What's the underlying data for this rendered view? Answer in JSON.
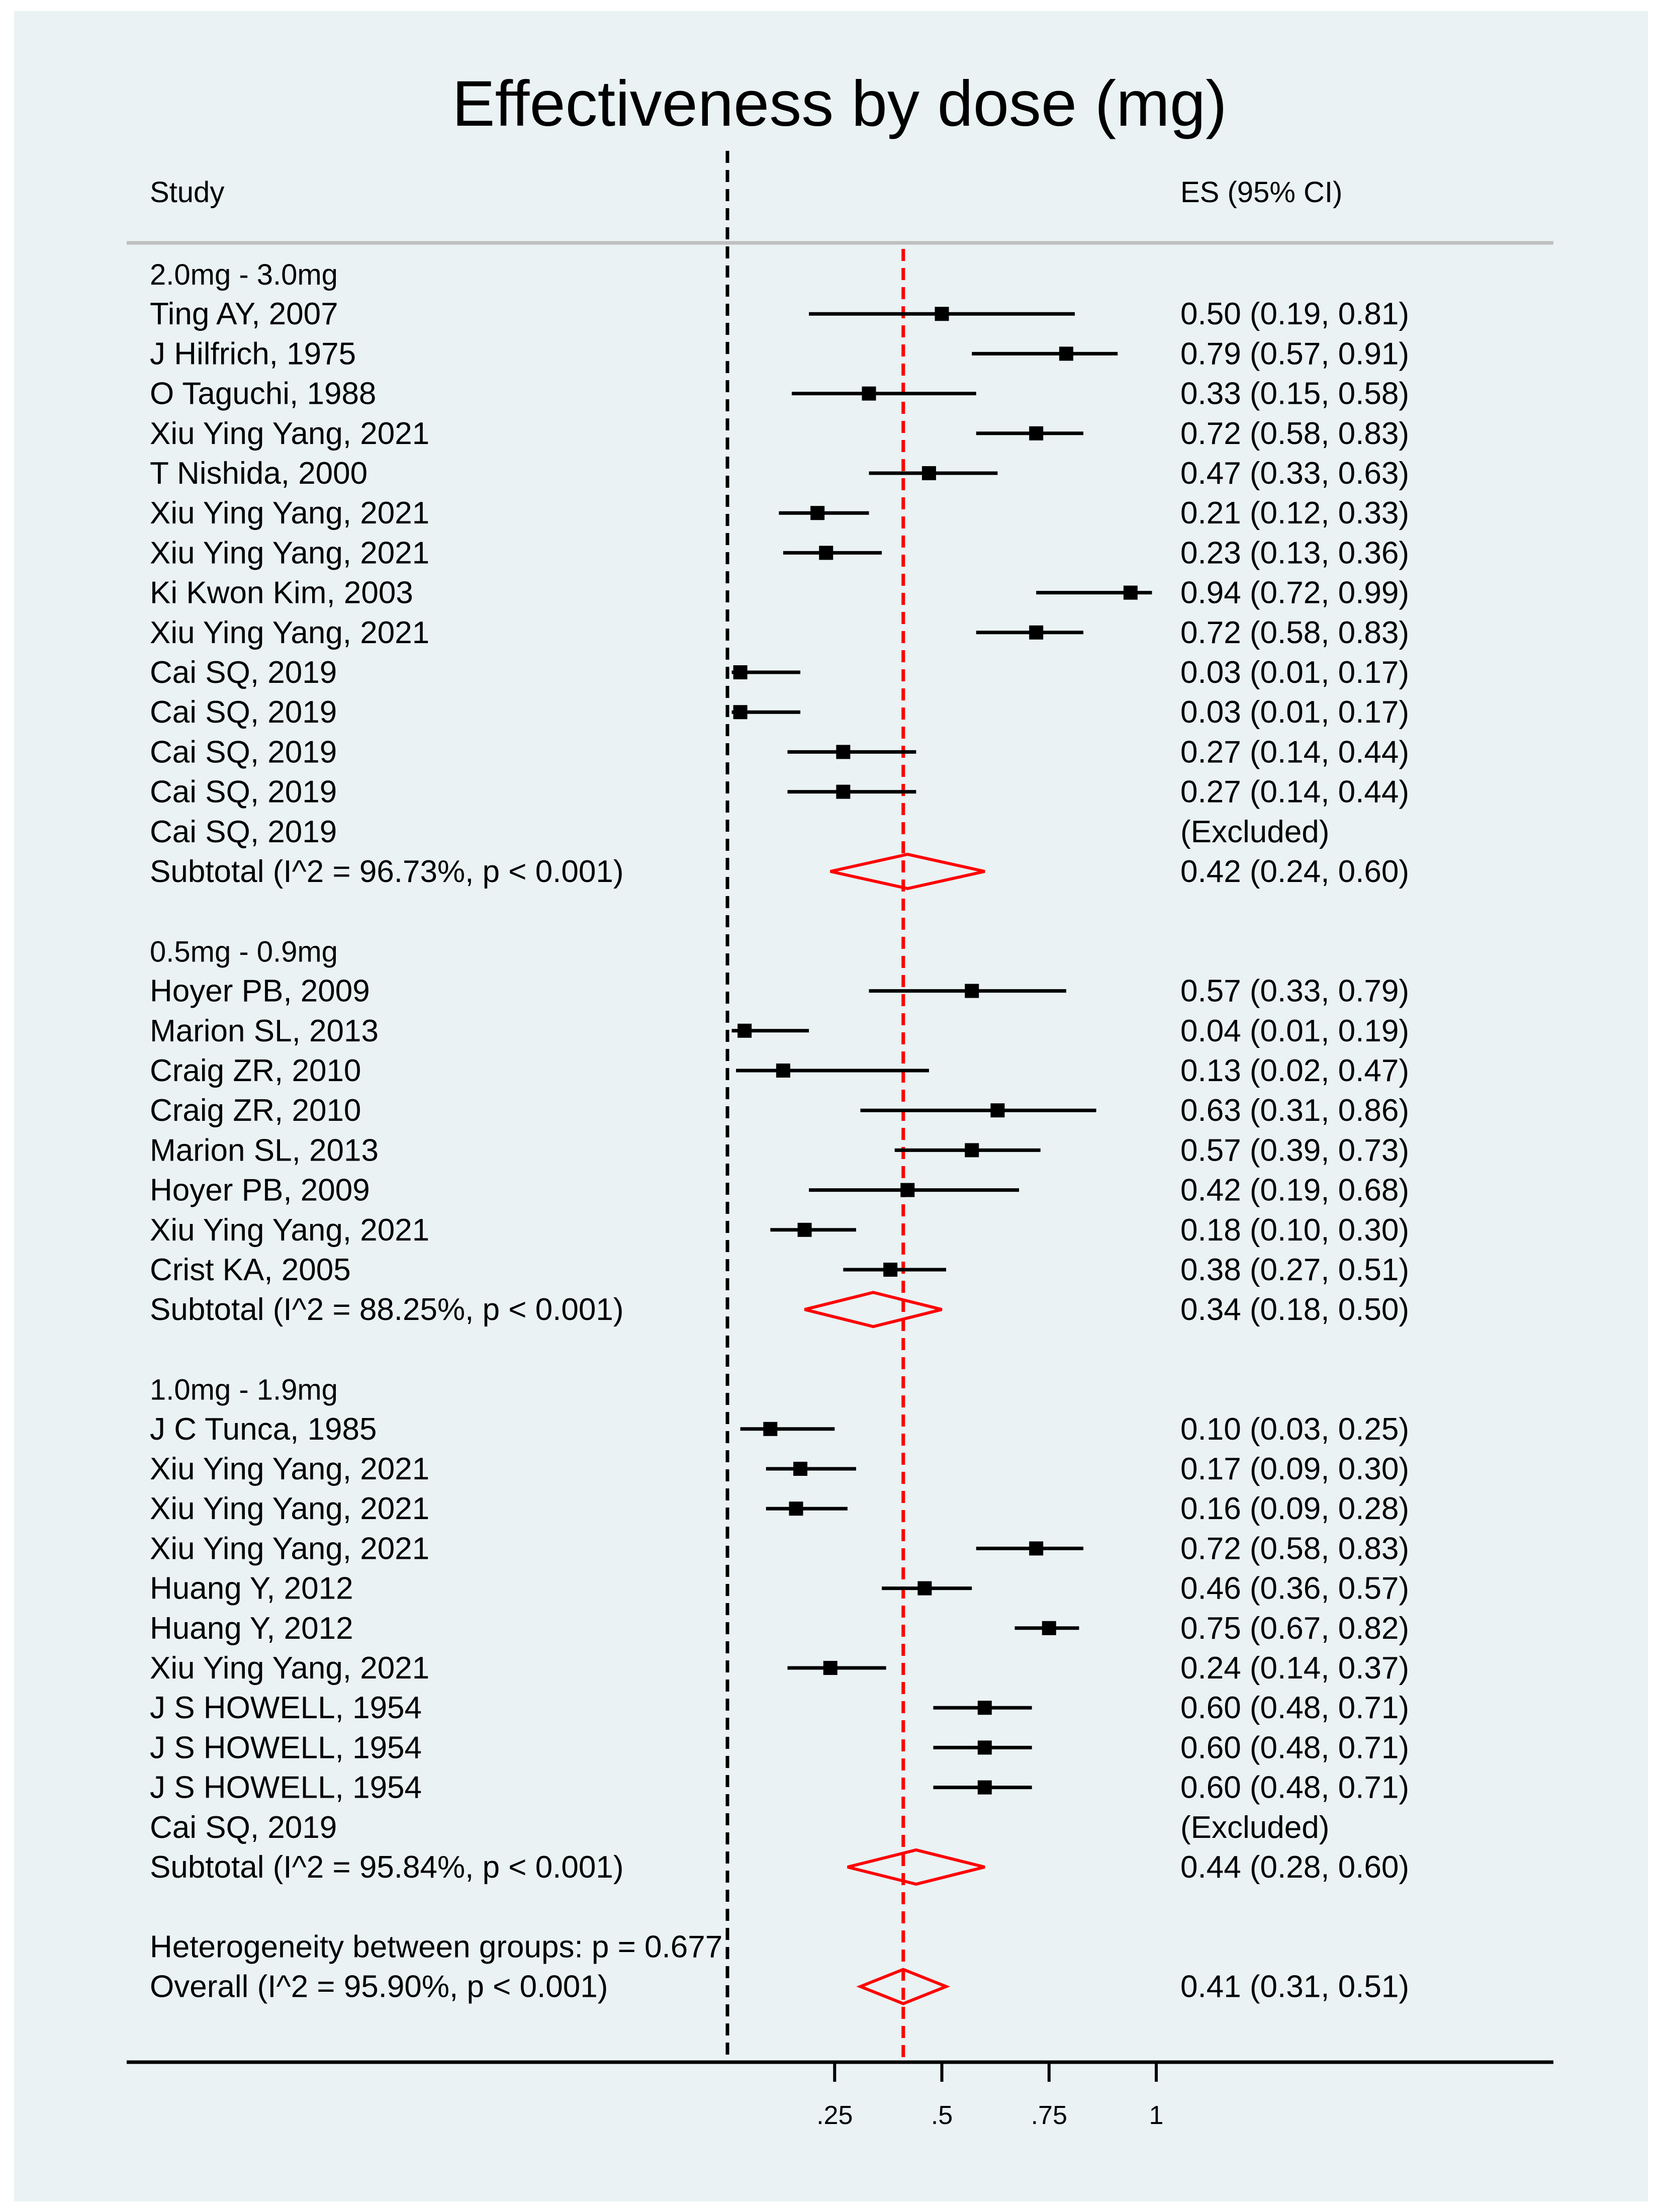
{
  "chart_data": {
    "type": "forest",
    "title": "Effectiveness by dose (mg)",
    "header": {
      "study": "Study",
      "es": "ES (95% CI)"
    },
    "x_ticks": [
      {
        "value": 0.25,
        "label": ".25"
      },
      {
        "value": 0.5,
        "label": ".5"
      },
      {
        "value": 0.75,
        "label": ".75"
      },
      {
        "value": 1.0,
        "label": "1"
      }
    ],
    "reference_lines": {
      "null_line": 0.0,
      "overall_es": 0.41
    },
    "groups": [
      {
        "name": "2.0mg - 3.0mg",
        "rows": [
          {
            "study": "Ting AY, 2007",
            "es": 0.5,
            "lo": 0.19,
            "hi": 0.81,
            "label": "0.50 (0.19, 0.81)"
          },
          {
            "study": "J Hilfrich, 1975",
            "es": 0.79,
            "lo": 0.57,
            "hi": 0.91,
            "label": "0.79 (0.57, 0.91)"
          },
          {
            "study": "O Taguchi, 1988",
            "es": 0.33,
            "lo": 0.15,
            "hi": 0.58,
            "label": "0.33 (0.15, 0.58)"
          },
          {
            "study": "Xiu Ying Yang, 2021",
            "es": 0.72,
            "lo": 0.58,
            "hi": 0.83,
            "label": "0.72 (0.58, 0.83)"
          },
          {
            "study": "T Nishida, 2000",
            "es": 0.47,
            "lo": 0.33,
            "hi": 0.63,
            "label": "0.47 (0.33, 0.63)"
          },
          {
            "study": "Xiu Ying Yang, 2021",
            "es": 0.21,
            "lo": 0.12,
            "hi": 0.33,
            "label": "0.21 (0.12, 0.33)"
          },
          {
            "study": "Xiu Ying Yang, 2021",
            "es": 0.23,
            "lo": 0.13,
            "hi": 0.36,
            "label": "0.23 (0.13, 0.36)"
          },
          {
            "study": "Ki Kwon Kim, 2003",
            "es": 0.94,
            "lo": 0.72,
            "hi": 0.99,
            "label": "0.94 (0.72, 0.99)"
          },
          {
            "study": "Xiu Ying Yang, 2021",
            "es": 0.72,
            "lo": 0.58,
            "hi": 0.83,
            "label": "0.72 (0.58, 0.83)"
          },
          {
            "study": "Cai SQ, 2019",
            "es": 0.03,
            "lo": 0.01,
            "hi": 0.17,
            "label": "0.03 (0.01, 0.17)"
          },
          {
            "study": "Cai SQ, 2019",
            "es": 0.03,
            "lo": 0.01,
            "hi": 0.17,
            "label": "0.03 (0.01, 0.17)"
          },
          {
            "study": "Cai SQ, 2019",
            "es": 0.27,
            "lo": 0.14,
            "hi": 0.44,
            "label": "0.27 (0.14, 0.44)"
          },
          {
            "study": "Cai SQ, 2019",
            "es": 0.27,
            "lo": 0.14,
            "hi": 0.44,
            "label": "0.27 (0.14, 0.44)"
          },
          {
            "study": "Cai SQ, 2019",
            "es": null,
            "lo": null,
            "hi": null,
            "label": "(Excluded)"
          }
        ],
        "subtotal": {
          "label": "Subtotal  (I^2 = 96.73%, p < 0.001)",
          "es": 0.42,
          "lo": 0.24,
          "hi": 0.6,
          "es_label": "0.42 (0.24, 0.60)"
        }
      },
      {
        "name": "0.5mg - 0.9mg",
        "rows": [
          {
            "study": "Hoyer PB, 2009",
            "es": 0.57,
            "lo": 0.33,
            "hi": 0.79,
            "label": "0.57 (0.33, 0.79)"
          },
          {
            "study": "Marion SL, 2013",
            "es": 0.04,
            "lo": 0.01,
            "hi": 0.19,
            "label": "0.04 (0.01, 0.19)"
          },
          {
            "study": "Craig ZR, 2010",
            "es": 0.13,
            "lo": 0.02,
            "hi": 0.47,
            "label": "0.13 (0.02, 0.47)"
          },
          {
            "study": "Craig ZR, 2010",
            "es": 0.63,
            "lo": 0.31,
            "hi": 0.86,
            "label": "0.63 (0.31, 0.86)"
          },
          {
            "study": "Marion SL, 2013",
            "es": 0.57,
            "lo": 0.39,
            "hi": 0.73,
            "label": "0.57 (0.39, 0.73)"
          },
          {
            "study": "Hoyer PB, 2009",
            "es": 0.42,
            "lo": 0.19,
            "hi": 0.68,
            "label": "0.42 (0.19, 0.68)"
          },
          {
            "study": "Xiu Ying Yang, 2021",
            "es": 0.18,
            "lo": 0.1,
            "hi": 0.3,
            "label": "0.18 (0.10, 0.30)"
          },
          {
            "study": "Crist KA, 2005",
            "es": 0.38,
            "lo": 0.27,
            "hi": 0.51,
            "label": "0.38 (0.27, 0.51)"
          }
        ],
        "subtotal": {
          "label": "Subtotal  (I^2 = 88.25%, p < 0.001)",
          "es": 0.34,
          "lo": 0.18,
          "hi": 0.5,
          "es_label": "0.34 (0.18, 0.50)"
        }
      },
      {
        "name": "1.0mg - 1.9mg",
        "rows": [
          {
            "study": "J C Tunca, 1985",
            "es": 0.1,
            "lo": 0.03,
            "hi": 0.25,
            "label": "0.10 (0.03, 0.25)"
          },
          {
            "study": "Xiu Ying Yang, 2021",
            "es": 0.17,
            "lo": 0.09,
            "hi": 0.3,
            "label": "0.17 (0.09, 0.30)"
          },
          {
            "study": "Xiu Ying Yang, 2021",
            "es": 0.16,
            "lo": 0.09,
            "hi": 0.28,
            "label": "0.16 (0.09, 0.28)"
          },
          {
            "study": "Xiu Ying Yang, 2021",
            "es": 0.72,
            "lo": 0.58,
            "hi": 0.83,
            "label": "0.72 (0.58, 0.83)"
          },
          {
            "study": "Huang Y, 2012",
            "es": 0.46,
            "lo": 0.36,
            "hi": 0.57,
            "label": "0.46 (0.36, 0.57)"
          },
          {
            "study": "Huang Y, 2012",
            "es": 0.75,
            "lo": 0.67,
            "hi": 0.82,
            "label": "0.75 (0.67, 0.82)"
          },
          {
            "study": "Xiu Ying Yang, 2021",
            "es": 0.24,
            "lo": 0.14,
            "hi": 0.37,
            "label": "0.24 (0.14, 0.37)"
          },
          {
            "study": "J S HOWELL, 1954",
            "es": 0.6,
            "lo": 0.48,
            "hi": 0.71,
            "label": "0.60 (0.48, 0.71)"
          },
          {
            "study": "J S HOWELL, 1954",
            "es": 0.6,
            "lo": 0.48,
            "hi": 0.71,
            "label": "0.60 (0.48, 0.71)"
          },
          {
            "study": "J S HOWELL, 1954",
            "es": 0.6,
            "lo": 0.48,
            "hi": 0.71,
            "label": "0.60 (0.48, 0.71)"
          },
          {
            "study": "Cai SQ, 2019",
            "es": null,
            "lo": null,
            "hi": null,
            "label": "(Excluded)"
          }
        ],
        "subtotal": {
          "label": "Subtotal  (I^2 = 95.84%, p < 0.001)",
          "es": 0.44,
          "lo": 0.28,
          "hi": 0.6,
          "es_label": "0.44 (0.28, 0.60)"
        }
      }
    ],
    "heterogeneity": "Heterogeneity between groups: p = 0.677",
    "overall": {
      "label": "Overall  (I^2 = 95.90%, p < 0.001)",
      "es": 0.41,
      "lo": 0.31,
      "hi": 0.51,
      "es_label": "0.41 (0.31, 0.51)"
    },
    "colors": {
      "background": "#eaf2f3",
      "frame": "#ffffff",
      "marker": "#000000",
      "diamond": "#ff0000",
      "overall_line": "#ff0000",
      "null_line": "#000000",
      "separator": "#bfbfbf"
    }
  }
}
